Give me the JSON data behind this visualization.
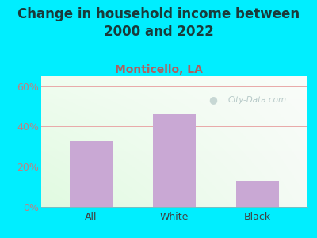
{
  "title": "Change in household income between\n2000 and 2022",
  "subtitle": "Monticello, LA",
  "categories": [
    "All",
    "White",
    "Black"
  ],
  "values": [
    32.5,
    46.0,
    13.0
  ],
  "bar_color": "#c9a8d4",
  "title_fontsize": 12,
  "title_color": "#1a3a3a",
  "subtitle_fontsize": 10,
  "subtitle_color": "#b06060",
  "yticks": [
    0,
    20,
    40,
    60
  ],
  "ylim": [
    0,
    65
  ],
  "background_outer": "#00eeff",
  "gridline_color": "#e8a8a8",
  "watermark_text": "City-Data.com",
  "bar_width": 0.52,
  "tick_label_color": "#c08080",
  "axis_label_color": "#404040"
}
